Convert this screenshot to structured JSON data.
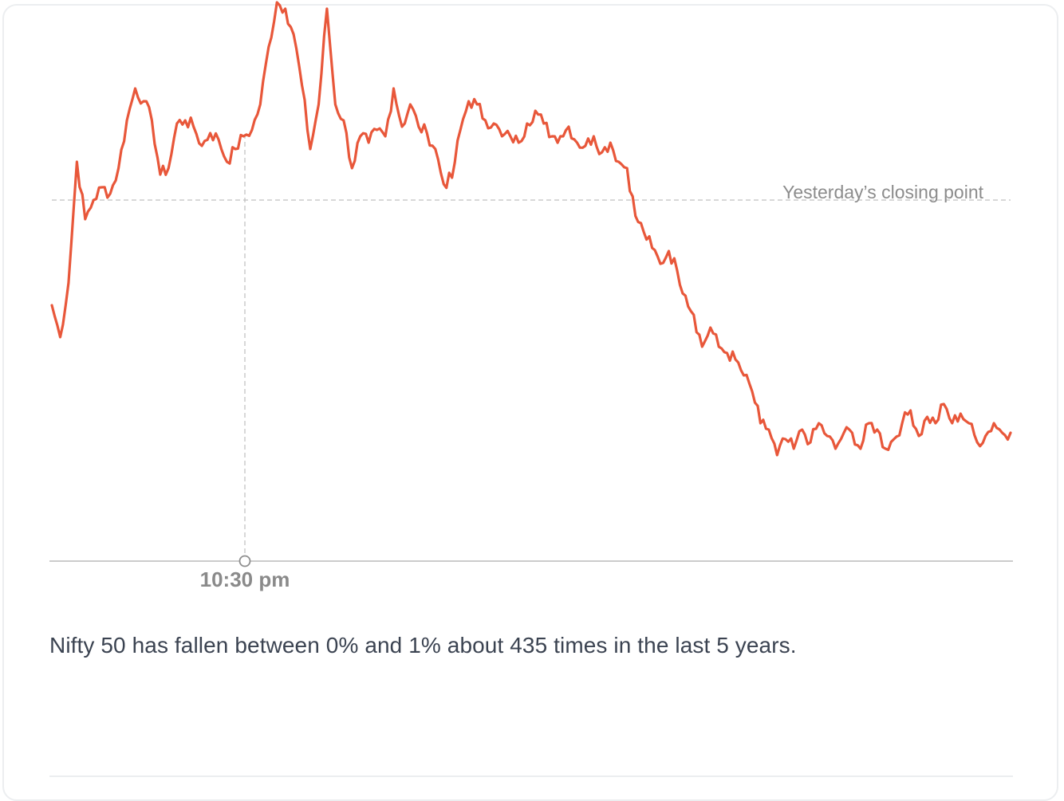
{
  "chart_data": {
    "type": "line",
    "reference_line": {
      "label": "Yesterday’s closing point"
    },
    "highlight": {
      "label": "10:30 pm"
    },
    "colors": {
      "series": "#e8573a",
      "reference": "#cccccc",
      "axis": "#bbbbbb",
      "marker_label": "#8a8a8a"
    },
    "series": [
      {
        "values": [
          -0.33,
          -0.43,
          -0.26,
          0.12,
          -0.06,
          0.0,
          0.04,
          0.02,
          0.1,
          0.25,
          0.35,
          0.31,
          0.25,
          0.08,
          0.1,
          0.24,
          0.25,
          0.23,
          0.17,
          0.21,
          0.19,
          0.12,
          0.16,
          0.2,
          0.22,
          0.3,
          0.48,
          0.62,
          0.6,
          0.52,
          0.36,
          0.16,
          0.3,
          0.6,
          0.3,
          0.25,
          0.1,
          0.2,
          0.18,
          0.22,
          0.2,
          0.35,
          0.23,
          0.3,
          0.23,
          0.21,
          0.16,
          0.05,
          0.07,
          0.22,
          0.31,
          0.3,
          0.25,
          0.24,
          0.2,
          0.2,
          0.18,
          0.24,
          0.28,
          0.24,
          0.2,
          0.2,
          0.23,
          0.18,
          0.17,
          0.2,
          0.15,
          0.18,
          0.12,
          0.1,
          -0.05,
          -0.1,
          -0.15,
          -0.2,
          -0.16,
          -0.22,
          -0.3,
          -0.36,
          -0.46,
          -0.4,
          -0.46,
          -0.48,
          -0.5,
          -0.55,
          -0.6,
          -0.7,
          -0.72,
          -0.8,
          -0.75,
          -0.78,
          -0.72,
          -0.76,
          -0.7,
          -0.74,
          -0.78,
          -0.73,
          -0.73,
          -0.78,
          -0.7,
          -0.72,
          -0.78,
          -0.75,
          -0.7,
          -0.66,
          -0.74,
          -0.68,
          -0.7,
          -0.64,
          -0.7,
          -0.67,
          -0.7,
          -0.76,
          -0.74,
          -0.7,
          -0.73,
          -0.73
        ]
      }
    ]
  },
  "caption": "Nifty 50 has fallen between 0% and 1% about 435 times in the last 5 years."
}
